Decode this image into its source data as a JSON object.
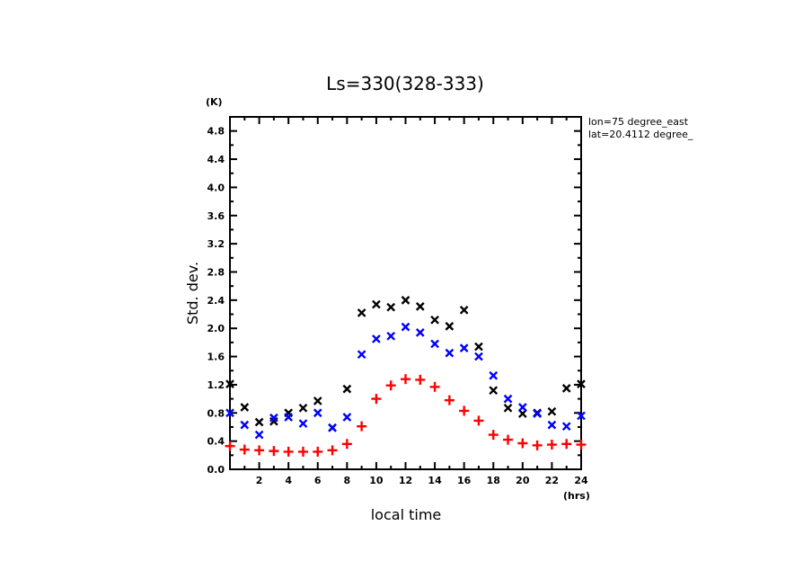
{
  "chart_data": {
    "type": "scatter",
    "title": "Ls=330(328-333)",
    "xlabel": "local time",
    "ylabel": "Std. dev.",
    "x_unit": "(hrs)",
    "y_unit": "(K)",
    "xlim": [
      0,
      24
    ],
    "ylim": [
      0,
      5.0
    ],
    "xticks": [
      2,
      4,
      6,
      8,
      10,
      12,
      14,
      16,
      18,
      20,
      22,
      24
    ],
    "xtick_labels": [
      "2",
      "4",
      "6",
      "8",
      "10",
      "12",
      "14",
      "16",
      "18",
      "20",
      "22",
      "24"
    ],
    "yticks": [
      0,
      0.4,
      0.8,
      1.2,
      1.6,
      2.0,
      2.4,
      2.8,
      3.2,
      3.6,
      4.0,
      4.4,
      4.8
    ],
    "ytick_labels": [
      "0.0",
      "0.4",
      "0.8",
      "1.2",
      "1.6",
      "2.0",
      "2.4",
      "2.8",
      "3.2",
      "3.6",
      "4.0",
      "4.4",
      "4.8"
    ],
    "grid": false,
    "annotations": [
      "lon=75 degree_east",
      "lat=20.4112 degree_"
    ],
    "x": [
      0,
      1,
      2,
      3,
      4,
      5,
      6,
      7,
      8,
      9,
      10,
      11,
      12,
      13,
      14,
      15,
      16,
      17,
      18,
      19,
      20,
      21,
      22,
      23,
      24
    ],
    "series": [
      {
        "name": "black-x",
        "marker": "x",
        "color": "#000000",
        "values": [
          1.21,
          0.88,
          0.67,
          0.68,
          0.8,
          0.87,
          0.97,
          0.59,
          1.14,
          2.22,
          2.34,
          2.3,
          2.4,
          2.31,
          2.12,
          2.03,
          2.26,
          1.74,
          1.12,
          0.87,
          0.79,
          0.8,
          0.82,
          1.15,
          1.21
        ]
      },
      {
        "name": "blue-x",
        "marker": "x",
        "color": "#0000ff",
        "values": [
          0.8,
          0.63,
          0.49,
          0.73,
          0.74,
          0.65,
          0.8,
          0.59,
          0.74,
          1.63,
          1.85,
          1.89,
          2.02,
          1.94,
          1.78,
          1.65,
          1.72,
          1.6,
          1.33,
          1.0,
          0.88,
          0.79,
          0.63,
          0.61,
          0.76
        ]
      },
      {
        "name": "red-plus",
        "marker": "+",
        "color": "#ff0000",
        "values": [
          0.33,
          0.28,
          0.27,
          0.26,
          0.25,
          0.25,
          0.25,
          0.27,
          0.36,
          0.61,
          1.0,
          1.19,
          1.28,
          1.27,
          1.17,
          0.98,
          0.83,
          0.69,
          0.49,
          0.42,
          0.37,
          0.34,
          0.35,
          0.36,
          0.35
        ]
      }
    ]
  }
}
